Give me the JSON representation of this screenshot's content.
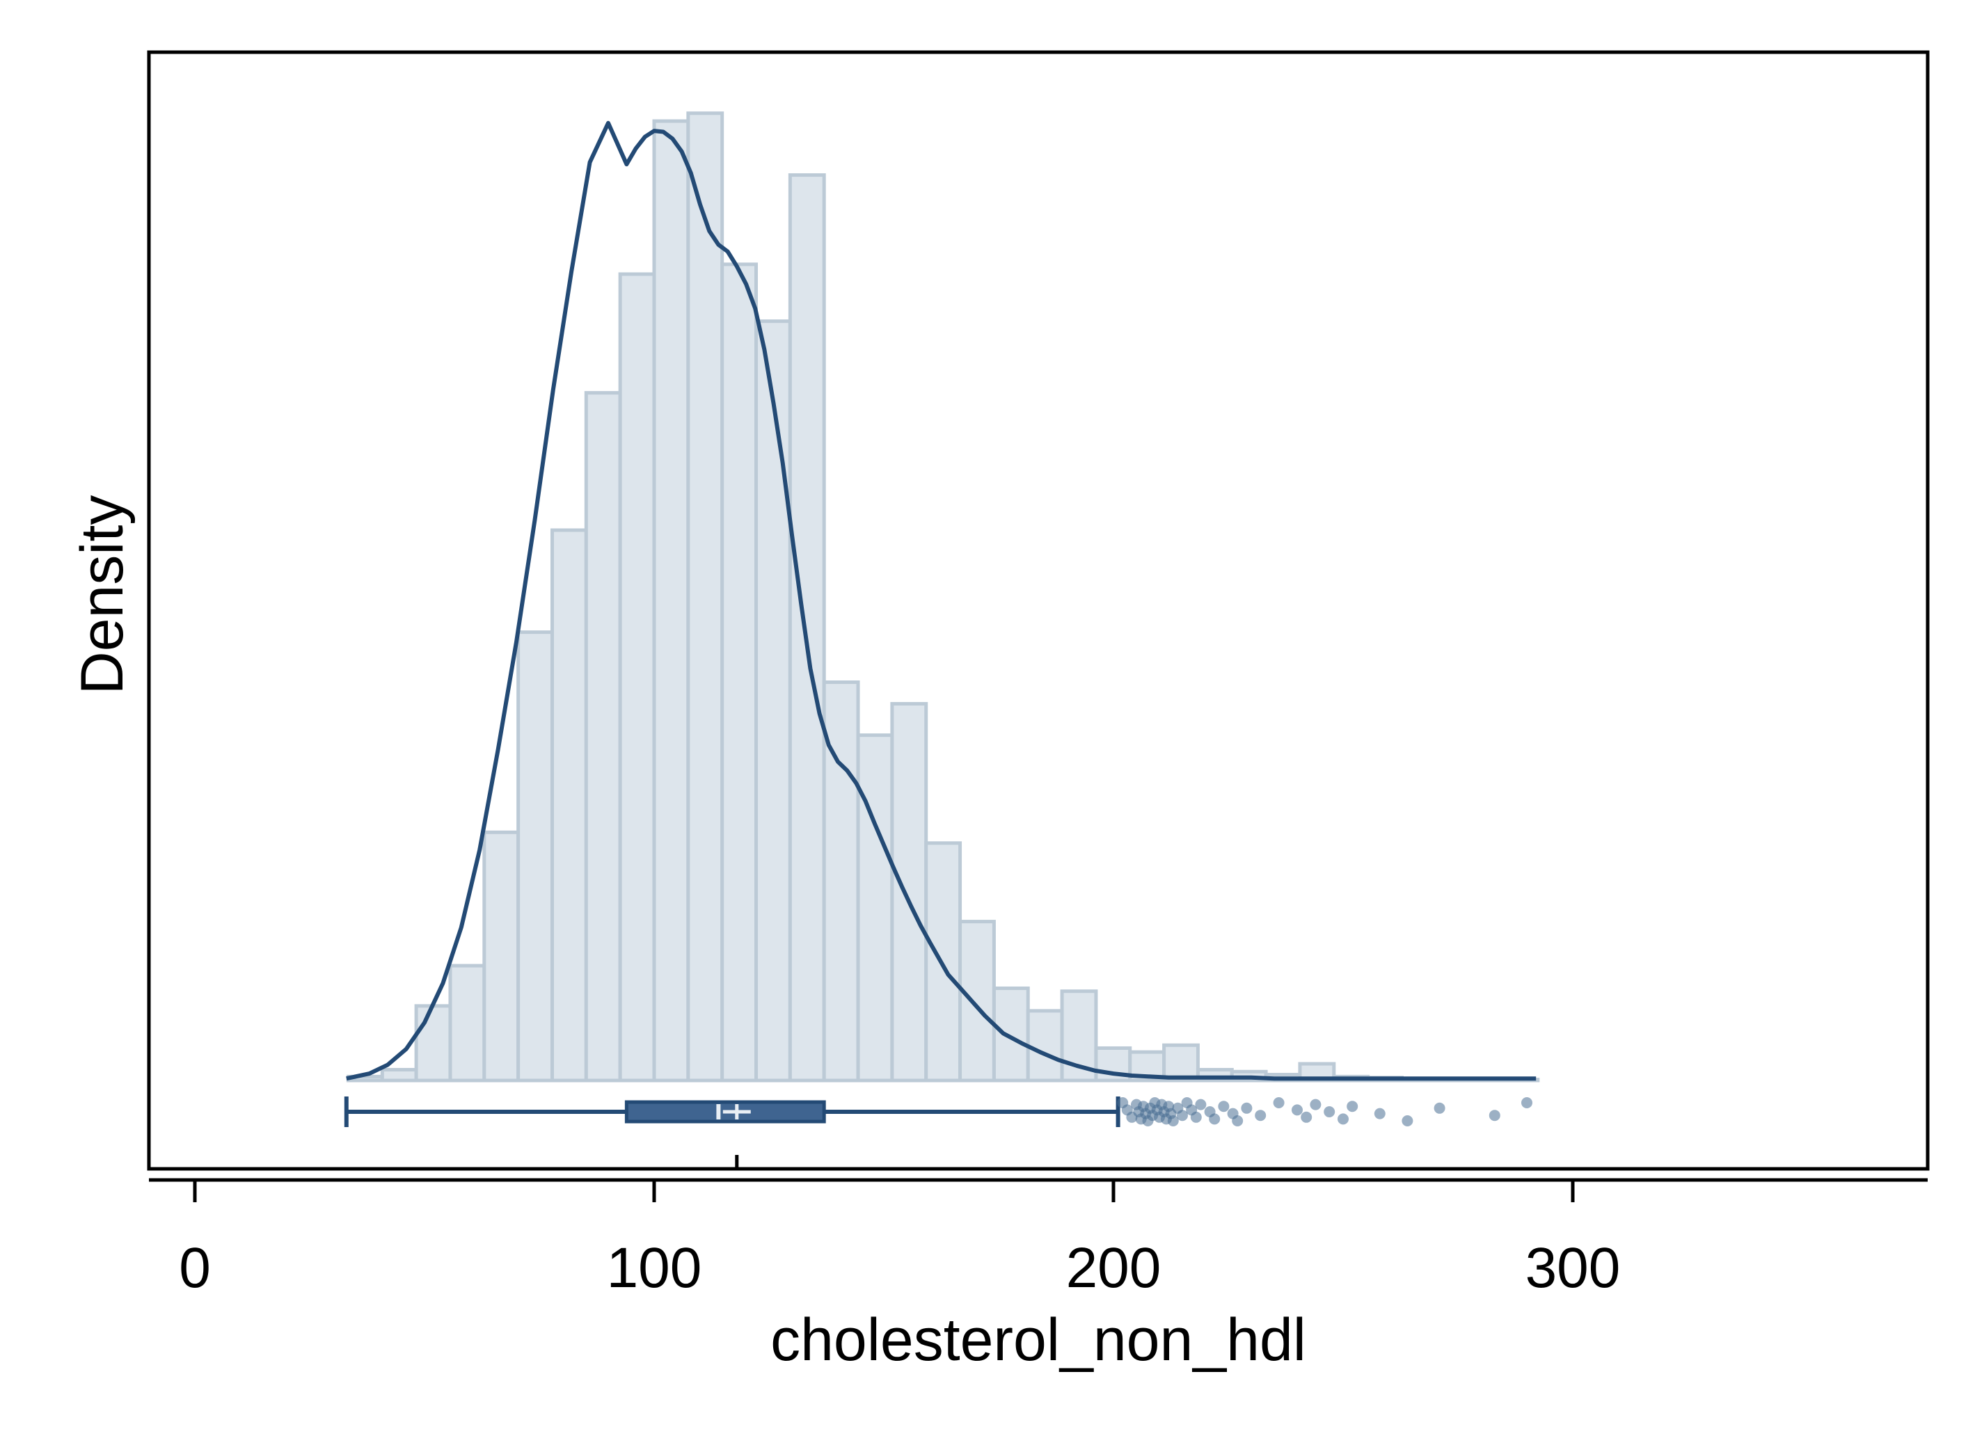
{
  "chart_data": {
    "type": "histogram",
    "title": "",
    "xlabel": "cholesterol_non_hdl",
    "ylabel": "Density",
    "xlim": [
      -8,
      308
    ],
    "x_ticks": [
      0,
      100,
      200,
      300
    ],
    "y_ticks": [],
    "ylim": [
      0,
      1.0
    ],
    "grid": false,
    "legend": "none",
    "histogram": {
      "bin_width": 7.4,
      "bin_edges": [
        33.4,
        40.8,
        48.2,
        55.6,
        63.0,
        70.4,
        77.8,
        85.2,
        92.6,
        100.0,
        107.4,
        114.8,
        122.2,
        129.6,
        137.0,
        144.4,
        151.8,
        159.2,
        166.6,
        174.0,
        181.4,
        188.8,
        196.2,
        203.6,
        211.0,
        218.4,
        225.8,
        233.2,
        240.6,
        248.0,
        255.4,
        262.8,
        270.2,
        277.6,
        285.0,
        292.4
      ],
      "relative_heights": [
        0.004,
        0.011,
        0.076,
        0.117,
        0.253,
        0.457,
        0.561,
        0.701,
        0.822,
        0.978,
        0.986,
        0.832,
        0.774,
        0.923,
        0.406,
        0.352,
        0.384,
        0.242,
        0.162,
        0.094,
        0.071,
        0.091,
        0.033,
        0.029,
        0.036,
        0.011,
        0.009,
        0.006,
        0.017,
        0.004,
        0.003,
        0.002,
        0.002,
        0.002,
        0.001
      ]
    },
    "density_curve": {
      "x": [
        33,
        38,
        42,
        46,
        50,
        54,
        58,
        62,
        66,
        70,
        74,
        78,
        82,
        86,
        90,
        94,
        96,
        98,
        100,
        102,
        104,
        106,
        108,
        110,
        112,
        114,
        116,
        118,
        120,
        122,
        124,
        126,
        128,
        130,
        132,
        134,
        136,
        138,
        140,
        142,
        144,
        146,
        148,
        150,
        152,
        154,
        156,
        158,
        160,
        164,
        168,
        172,
        176,
        180,
        184,
        188,
        192,
        196,
        200,
        204,
        208,
        212,
        216,
        220,
        225,
        230,
        235,
        240,
        245,
        250,
        255,
        260,
        265,
        270,
        275,
        280,
        285,
        290,
        292
      ],
      "y": [
        0.002,
        0.007,
        0.016,
        0.032,
        0.059,
        0.099,
        0.156,
        0.235,
        0.337,
        0.447,
        0.571,
        0.704,
        0.825,
        0.936,
        0.976,
        0.934,
        0.95,
        0.962,
        0.968,
        0.967,
        0.96,
        0.947,
        0.925,
        0.893,
        0.866,
        0.852,
        0.845,
        0.83,
        0.812,
        0.787,
        0.745,
        0.69,
        0.629,
        0.556,
        0.486,
        0.42,
        0.374,
        0.342,
        0.325,
        0.316,
        0.303,
        0.285,
        0.262,
        0.24,
        0.218,
        0.197,
        0.177,
        0.158,
        0.141,
        0.108,
        0.087,
        0.066,
        0.048,
        0.038,
        0.029,
        0.021,
        0.015,
        0.01,
        0.007,
        0.005,
        0.004,
        0.003,
        0.003,
        0.003,
        0.003,
        0.003,
        0.002,
        0.002,
        0.002,
        0.002,
        0.002,
        0.002,
        0.002,
        0.002,
        0.002,
        0.002,
        0.002,
        0.002,
        0.002
      ]
    },
    "boxplot": {
      "whisker_low": 33,
      "q1": 94,
      "median": 114,
      "mean": 118,
      "q3": 137,
      "whisker_high": 201,
      "outliers": [
        202,
        203,
        204,
        205,
        205.5,
        206,
        206.5,
        207,
        207.5,
        208,
        208.5,
        209,
        209.5,
        210,
        210.5,
        211,
        211.5,
        212,
        212.5,
        213,
        214,
        215,
        216,
        217,
        218,
        219,
        221,
        222,
        224,
        226,
        227,
        229,
        232,
        236,
        240,
        242,
        244,
        247,
        250,
        252,
        258,
        264,
        271,
        283,
        290
      ]
    },
    "colors": {
      "bar_fill": "#dde5ec",
      "bar_edge": "#bccad6",
      "curve": "#234a75",
      "box_fill": "#3f6490",
      "box_edge": "#234a75",
      "median_mark": "#e8eef4",
      "outlier": "#4a6f94"
    }
  }
}
